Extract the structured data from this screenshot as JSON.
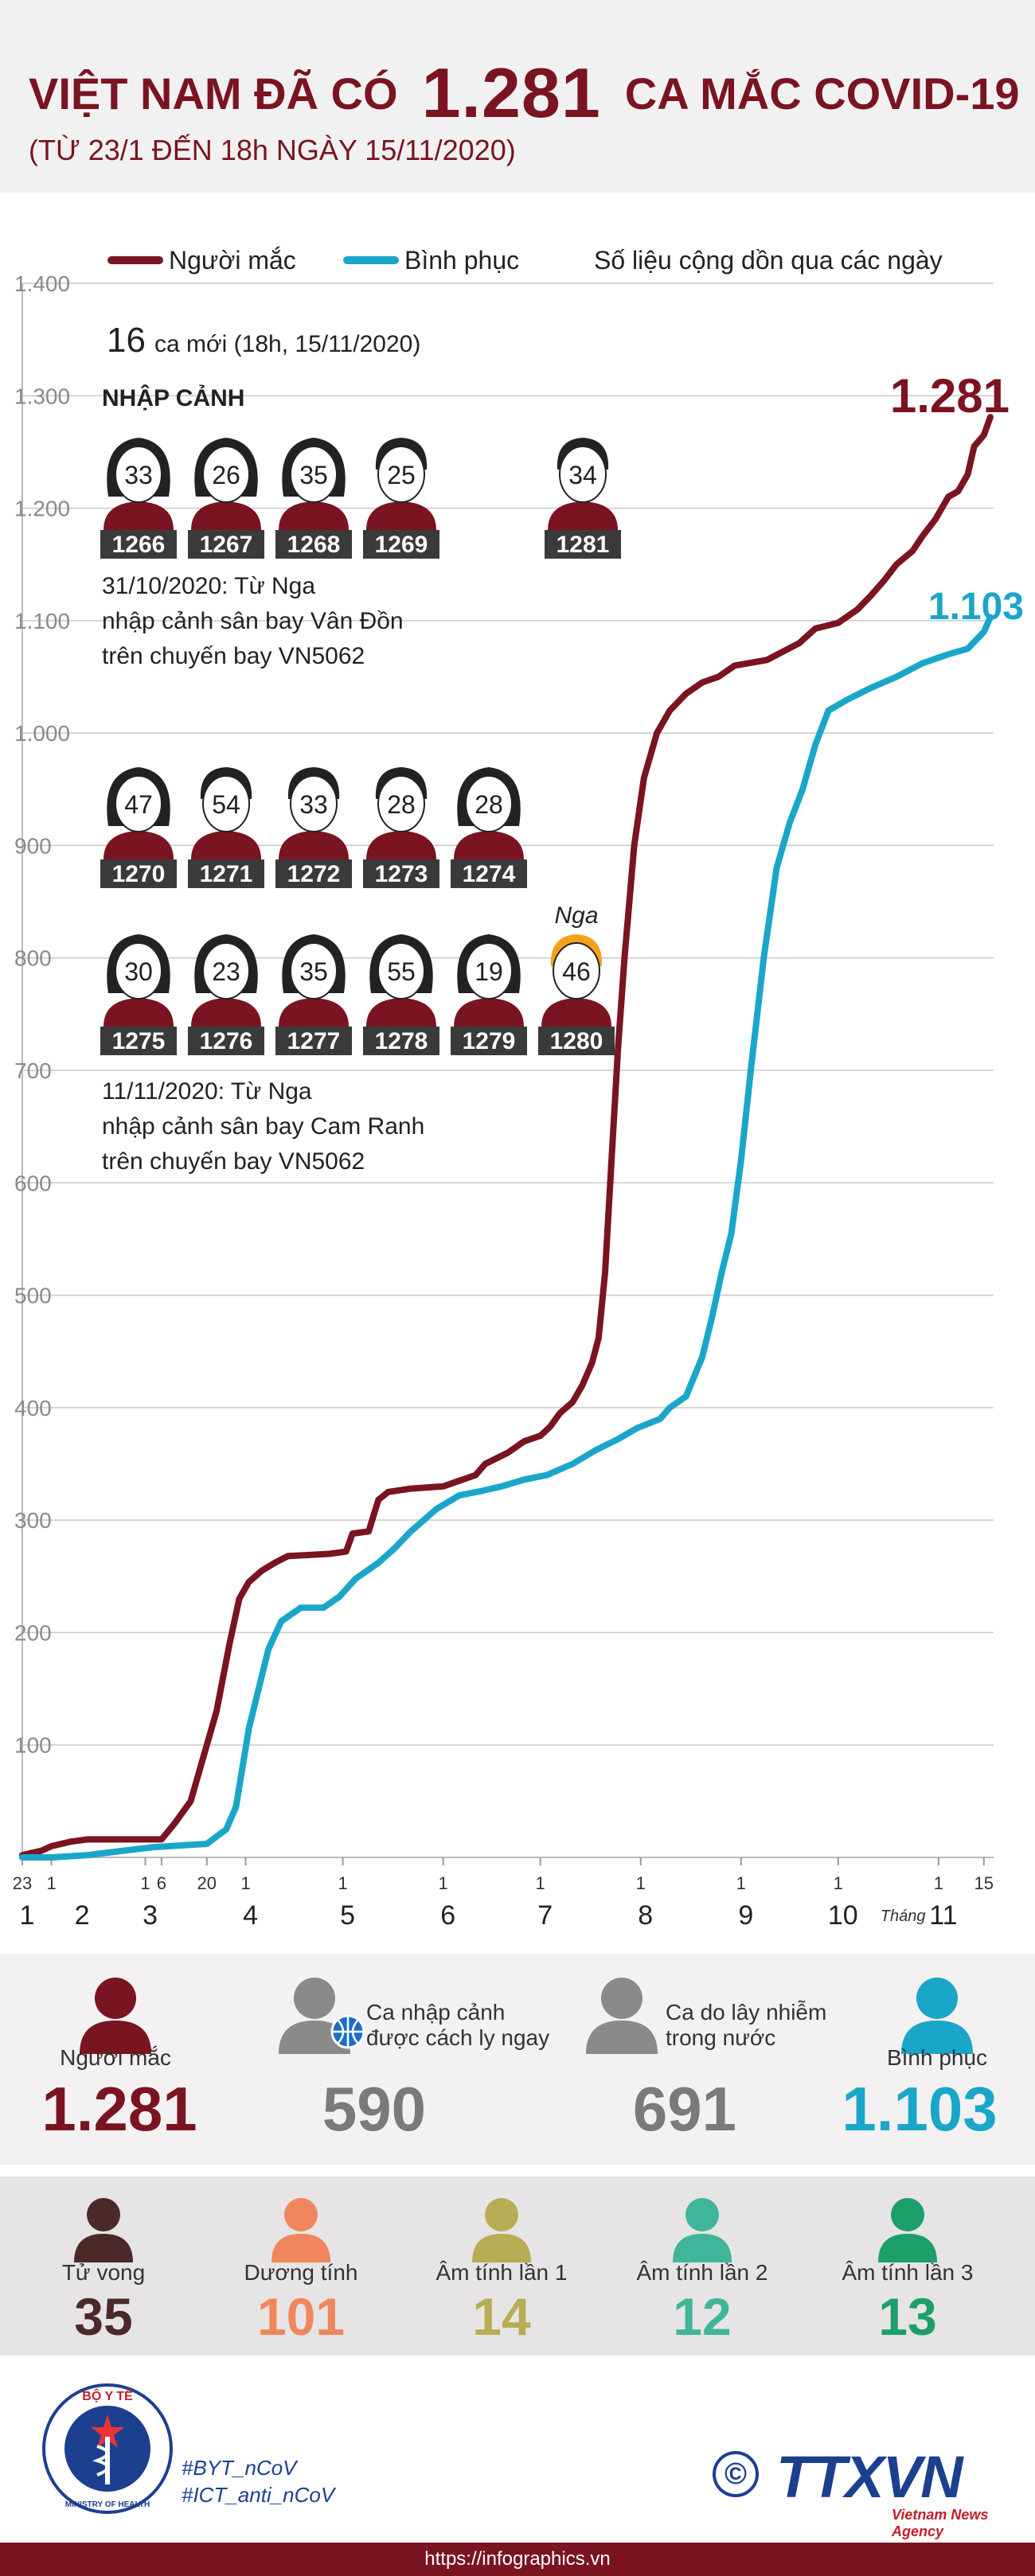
{
  "header": {
    "title_part1": "VIỆT NAM ĐÃ CÓ",
    "title_number": "1.281",
    "title_part2": "CA MẮC COVID-19",
    "subtitle": "(TỪ 23/1 ĐẾN 18h NGÀY 15/11/2020)"
  },
  "legend": {
    "cases_label": "Người mắc",
    "recovered_label": "Bình phục",
    "note": "Số liệu cộng dồn qua các ngày"
  },
  "colors": {
    "cases": "#7a1420",
    "recovered": "#1aa6c9",
    "dark_red": "#7a1420",
    "grey": "#7a7a7a",
    "deaths": "#4a2a28",
    "positive": "#f0875c",
    "negative1": "#b8ad55",
    "negative2": "#3fb59a",
    "negative3": "#1c9f6b",
    "foreign_hair": "#f4a11c"
  },
  "annotations": {
    "new_cases_number": "16",
    "new_cases_text": "ca mới (18h, 15/11/2020)",
    "section_title": "NHẬP CẢNH",
    "flight1": [
      "31/10/2020: Từ Nga",
      "nhập cảnh sân bay Vân Đồn",
      "trên chuyến bay VN5062"
    ],
    "flight2": [
      "11/11/2020: Từ Nga",
      "nhập cảnh sân bay Cam Ranh",
      "trên chuyến bay VN5062"
    ],
    "end_cases_label": "1.281",
    "end_recovered_label": "1.103",
    "foreign_tag": "Nga"
  },
  "patients": {
    "group1": [
      {
        "age": "33",
        "id": "1266",
        "gender": "f"
      },
      {
        "age": "26",
        "id": "1267",
        "gender": "f"
      },
      {
        "age": "35",
        "id": "1268",
        "gender": "f"
      },
      {
        "age": "25",
        "id": "1269",
        "gender": "m"
      },
      {
        "age": "34",
        "id": "1281",
        "gender": "m"
      }
    ],
    "group2": [
      {
        "age": "47",
        "id": "1270",
        "gender": "f"
      },
      {
        "age": "54",
        "id": "1271",
        "gender": "m"
      },
      {
        "age": "33",
        "id": "1272",
        "gender": "m"
      },
      {
        "age": "28",
        "id": "1273",
        "gender": "m"
      },
      {
        "age": "28",
        "id": "1274",
        "gender": "f"
      }
    ],
    "group3": [
      {
        "age": "30",
        "id": "1275",
        "gender": "f"
      },
      {
        "age": "23",
        "id": "1276",
        "gender": "f"
      },
      {
        "age": "35",
        "id": "1277",
        "gender": "f"
      },
      {
        "age": "55",
        "id": "1278",
        "gender": "f"
      },
      {
        "age": "19",
        "id": "1279",
        "gender": "f"
      },
      {
        "age": "46",
        "id": "1280",
        "gender": "m",
        "foreign": true
      }
    ]
  },
  "chart_data": {
    "type": "line",
    "title": "Số liệu cộng dồn qua các ngày",
    "xlabel": "Tháng",
    "ylabel": "",
    "ylim": [
      0,
      1400
    ],
    "yticks": [
      "1.400",
      "1.300",
      "1.200",
      "1.100",
      "1.000",
      "900",
      "800",
      "700",
      "600",
      "500",
      "400",
      "300",
      "200",
      "100"
    ],
    "ytick_values": [
      1400,
      1300,
      1200,
      1100,
      1000,
      900,
      800,
      700,
      600,
      500,
      400,
      300,
      200,
      100
    ],
    "month_labels": [
      {
        "label": "1",
        "day": 0
      },
      {
        "label": "2",
        "day": 17
      },
      {
        "label": "3",
        "day": 38
      },
      {
        "label": "4",
        "day": 69
      },
      {
        "label": "5",
        "day": 99
      },
      {
        "label": "6",
        "day": 130
      },
      {
        "label": "7",
        "day": 160
      },
      {
        "label": "8",
        "day": 191
      },
      {
        "label": "9",
        "day": 222
      },
      {
        "label": "10",
        "day": 252
      },
      {
        "label": "11",
        "day": 283
      }
    ],
    "day_ticks": [
      {
        "label": "23",
        "day": 0
      },
      {
        "label": "1",
        "day": 9
      },
      {
        "label": "1",
        "day": 38
      },
      {
        "label": "6",
        "day": 43
      },
      {
        "label": "20",
        "day": 57
      },
      {
        "label": "1",
        "day": 69
      },
      {
        "label": "1",
        "day": 99
      },
      {
        "label": "1",
        "day": 130
      },
      {
        "label": "1",
        "day": 160
      },
      {
        "label": "1",
        "day": 191
      },
      {
        "label": "1",
        "day": 222
      },
      {
        "label": "1",
        "day": 252
      },
      {
        "label": "1",
        "day": 283
      },
      {
        "label": "15",
        "day": 297
      }
    ],
    "month_axis_label": "Tháng",
    "series": [
      {
        "name": "Người mắc",
        "points": [
          [
            0,
            2
          ],
          [
            6,
            6
          ],
          [
            9,
            10
          ],
          [
            15,
            14
          ],
          [
            20,
            16
          ],
          [
            38,
            16
          ],
          [
            43,
            16
          ],
          [
            47,
            30
          ],
          [
            52,
            50
          ],
          [
            57,
            100
          ],
          [
            60,
            130
          ],
          [
            64,
            190
          ],
          [
            67,
            230
          ],
          [
            70,
            245
          ],
          [
            74,
            255
          ],
          [
            78,
            262
          ],
          [
            82,
            268
          ],
          [
            95,
            270
          ],
          [
            100,
            272
          ],
          [
            102,
            288
          ],
          [
            107,
            290
          ],
          [
            110,
            318
          ],
          [
            113,
            325
          ],
          [
            120,
            328
          ],
          [
            130,
            330
          ],
          [
            135,
            335
          ],
          [
            140,
            340
          ],
          [
            143,
            350
          ],
          [
            150,
            360
          ],
          [
            155,
            370
          ],
          [
            160,
            375
          ],
          [
            163,
            383
          ],
          [
            166,
            395
          ],
          [
            170,
            405
          ],
          [
            173,
            420
          ],
          [
            176,
            440
          ],
          [
            178,
            462
          ],
          [
            180,
            520
          ],
          [
            182,
            620
          ],
          [
            184,
            720
          ],
          [
            186,
            800
          ],
          [
            189,
            900
          ],
          [
            192,
            960
          ],
          [
            196,
            1000
          ],
          [
            200,
            1020
          ],
          [
            205,
            1035
          ],
          [
            210,
            1045
          ],
          [
            215,
            1050
          ],
          [
            220,
            1060
          ],
          [
            230,
            1065
          ],
          [
            240,
            1080
          ],
          [
            245,
            1093
          ],
          [
            252,
            1098
          ],
          [
            258,
            1110
          ],
          [
            262,
            1122
          ],
          [
            266,
            1135
          ],
          [
            270,
            1150
          ],
          [
            275,
            1162
          ],
          [
            278,
            1175
          ],
          [
            282,
            1190
          ],
          [
            286,
            1210
          ],
          [
            289,
            1215
          ],
          [
            292,
            1230
          ],
          [
            294,
            1255
          ],
          [
            297,
            1265
          ],
          [
            299,
            1281
          ]
        ]
      },
      {
        "name": "Bình phục",
        "points": [
          [
            0,
            0
          ],
          [
            9,
            0
          ],
          [
            20,
            2
          ],
          [
            40,
            9
          ],
          [
            57,
            12
          ],
          [
            63,
            25
          ],
          [
            66,
            45
          ],
          [
            70,
            115
          ],
          [
            73,
            150
          ],
          [
            76,
            185
          ],
          [
            80,
            210
          ],
          [
            86,
            222
          ],
          [
            93,
            222
          ],
          [
            98,
            232
          ],
          [
            103,
            248
          ],
          [
            110,
            262
          ],
          [
            115,
            275
          ],
          [
            120,
            290
          ],
          [
            128,
            310
          ],
          [
            135,
            322
          ],
          [
            142,
            326
          ],
          [
            148,
            330
          ],
          [
            155,
            336
          ],
          [
            162,
            340
          ],
          [
            170,
            350
          ],
          [
            177,
            362
          ],
          [
            184,
            372
          ],
          [
            190,
            382
          ],
          [
            197,
            390
          ],
          [
            200,
            400
          ],
          [
            205,
            410
          ],
          [
            210,
            445
          ],
          [
            213,
            480
          ],
          [
            216,
            520
          ],
          [
            219,
            555
          ],
          [
            222,
            620
          ],
          [
            225,
            700
          ],
          [
            229,
            800
          ],
          [
            233,
            880
          ],
          [
            237,
            920
          ],
          [
            241,
            950
          ],
          [
            245,
            990
          ],
          [
            249,
            1020
          ],
          [
            255,
            1030
          ],
          [
            262,
            1040
          ],
          [
            270,
            1050
          ],
          [
            278,
            1062
          ],
          [
            286,
            1070
          ],
          [
            292,
            1075
          ],
          [
            297,
            1090
          ],
          [
            299,
            1103
          ]
        ]
      }
    ]
  },
  "summary": {
    "cases_label": "Người mắc",
    "cases_value": "1.281",
    "imported_label_1": "Ca nhập cảnh",
    "imported_label_2": "được cách ly ngay",
    "imported_value": "590",
    "local_label_1": "Ca do lây nhiễm",
    "local_label_2": "trong nước",
    "local_value": "691",
    "recovered_label": "Bình phục",
    "recovered_value": "1.103"
  },
  "status": {
    "deaths_label": "Tử vong",
    "deaths_value": "35",
    "positive_label": "Dương tính",
    "positive_value": "101",
    "neg1_label": "Âm tính lần 1",
    "neg1_value": "14",
    "neg2_label": "Âm tính lần 2",
    "neg2_value": "12",
    "neg3_label": "Âm tính lần 3",
    "neg3_value": "13"
  },
  "footer": {
    "ministry_top": "BỘ Y TẾ",
    "ministry_bottom": "MINISTRY OF HEALTH",
    "hashtag1": "#BYT_nCoV",
    "hashtag2": "#ICT_anti_nCoV",
    "copyright": "©",
    "agency_logo": "TTXVN",
    "agency_name": "Vietnam News Agency",
    "url": "https://infographics.vn"
  }
}
